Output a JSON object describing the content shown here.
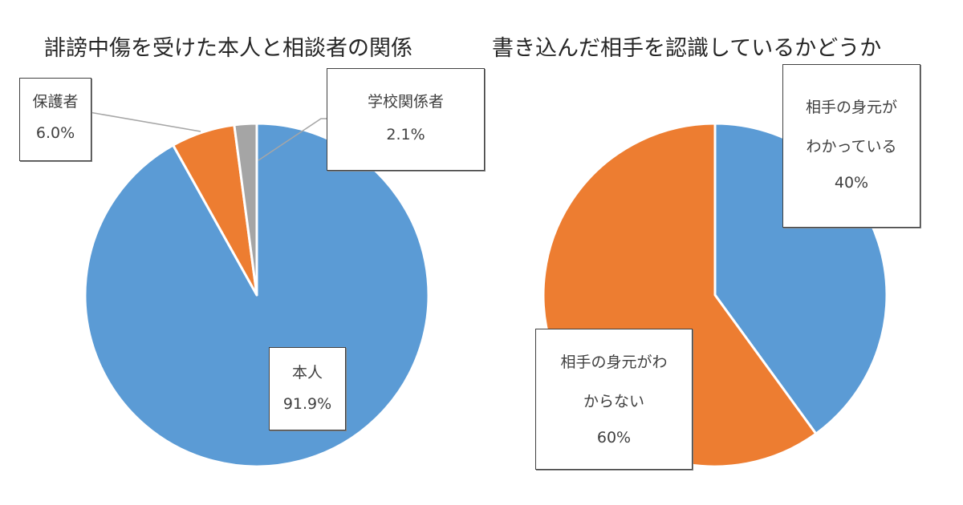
{
  "chart_data": [
    {
      "type": "pie",
      "title": "誹謗中傷を受けた本人と相談者の関係",
      "categories": [
        "本人",
        "保護者",
        "学校関係者"
      ],
      "values": [
        91.9,
        6.0,
        2.1
      ],
      "value_labels": [
        "91.9%",
        "6.0%",
        "2.1%"
      ],
      "colors": [
        "#5B9BD5",
        "#ED7D31",
        "#A5A5A5"
      ],
      "start_angle_deg": 0,
      "direction": "clockwise",
      "data_labels": [
        {
          "name": "本人",
          "value": "91.9%",
          "position": "inside"
        },
        {
          "name": "保護者",
          "value": "6.0%",
          "position": "outside-leader-line"
        },
        {
          "name": "学校関係者",
          "value": "2.1%",
          "position": "outside-leader-line"
        }
      ],
      "legend": "none"
    },
    {
      "type": "pie",
      "title": "書き込んだ相手を認識しているかどうか",
      "categories": [
        "相手の身元がわかっている",
        "相手の身元がわからない"
      ],
      "values": [
        40,
        60
      ],
      "value_labels": [
        "40%",
        "60%"
      ],
      "colors": [
        "#5B9BD5",
        "#ED7D31"
      ],
      "start_angle_deg": 0,
      "direction": "clockwise",
      "data_labels": [
        {
          "name_lines": [
            "相手の身元が",
            "わかっている"
          ],
          "value": "40%"
        },
        {
          "name_lines": [
            "相手の身元がわ",
            "からない"
          ],
          "value": "60%"
        }
      ],
      "legend": "none"
    }
  ],
  "left": {
    "title": "誹謗中傷を受けた本人と相談者の関係",
    "labels": {
      "self": {
        "name": "本人",
        "value": "91.9%"
      },
      "guardian": {
        "name": "保護者",
        "value": "6.0%"
      },
      "school": {
        "name": "学校関係者",
        "value": "2.1%"
      }
    }
  },
  "right": {
    "title": "書き込んだ相手を認識しているかどうか",
    "labels": {
      "known": {
        "line1": "相手の身元が",
        "line2": "わかっている",
        "value": "40%"
      },
      "unknown": {
        "line1": "相手の身元がわ",
        "line2": "からない",
        "value": "60%"
      }
    }
  }
}
